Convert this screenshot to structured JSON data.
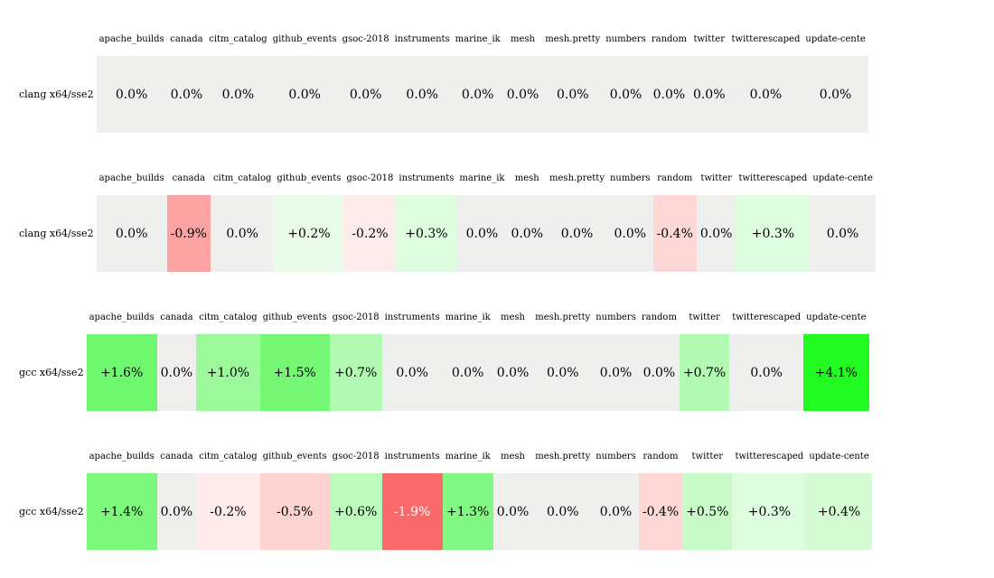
{
  "page": {
    "background": "#ffffff",
    "default_text_color": "#000000"
  },
  "chart_data": {
    "type": "heatmap",
    "unit": "%",
    "grid": false,
    "zero_color": "#efefee",
    "positive_color_family": "green",
    "negative_color_family": "red",
    "columns": [
      "apache_builds",
      "canada",
      "citm_catalog",
      "github_events",
      "gsoc-2018",
      "instruments",
      "marine_ik",
      "mesh",
      "mesh.pretty",
      "numbers",
      "random",
      "twitter",
      "twitterescaped",
      "update-cente"
    ],
    "blocks": [
      {
        "row_label": "clang x64/sse2",
        "values": [
          "0.0%",
          "0.0%",
          "0.0%",
          "0.0%",
          "0.0%",
          "0.0%",
          "0.0%",
          "0.0%",
          "0.0%",
          "0.0%",
          "0.0%",
          "0.0%",
          "0.0%",
          "0.0%"
        ],
        "numeric_values": [
          0.0,
          0.0,
          0.0,
          0.0,
          0.0,
          0.0,
          0.0,
          0.0,
          0.0,
          0.0,
          0.0,
          0.0,
          0.0,
          0.0
        ],
        "colors": [
          "#efefee",
          "#efefee",
          "#efefee",
          "#efefee",
          "#efefee",
          "#efefee",
          "#efefee",
          "#efefee",
          "#efefee",
          "#efefee",
          "#efefee",
          "#efefee",
          "#efefee",
          "#efefee"
        ],
        "text_colors": [
          "#000000",
          "#000000",
          "#000000",
          "#000000",
          "#000000",
          "#000000",
          "#000000",
          "#000000",
          "#000000",
          "#000000",
          "#000000",
          "#000000",
          "#000000",
          "#000000"
        ]
      },
      {
        "row_label": "clang x64/sse2",
        "values": [
          "0.0%",
          "-0.9%",
          "0.0%",
          "+0.2%",
          "-0.2%",
          "+0.3%",
          "0.0%",
          "0.0%",
          "0.0%",
          "0.0%",
          "-0.4%",
          "0.0%",
          "+0.3%",
          "0.0%"
        ],
        "numeric_values": [
          0.0,
          -0.9,
          0.0,
          0.2,
          -0.2,
          0.3,
          0.0,
          0.0,
          0.0,
          0.0,
          -0.4,
          0.0,
          0.3,
          0.0
        ],
        "colors": [
          "#efefee",
          "#fba3a2",
          "#efefee",
          "#e9fce9",
          "#fdeceb",
          "#defcde",
          "#efefee",
          "#efefee",
          "#efefee",
          "#efefee",
          "#fdd8d7",
          "#efefee",
          "#defcde",
          "#efefee"
        ],
        "text_colors": [
          "#000000",
          "#000000",
          "#000000",
          "#000000",
          "#000000",
          "#000000",
          "#000000",
          "#000000",
          "#000000",
          "#000000",
          "#000000",
          "#000000",
          "#000000",
          "#000000"
        ]
      },
      {
        "row_label": "gcc x64/sse2",
        "values": [
          "+1.6%",
          "0.0%",
          "+1.0%",
          "+1.5%",
          "+0.7%",
          "0.0%",
          "0.0%",
          "0.0%",
          "0.0%",
          "0.0%",
          "0.0%",
          "+0.7%",
          "0.0%",
          "+4.1%"
        ],
        "numeric_values": [
          1.6,
          0.0,
          1.0,
          1.5,
          0.7,
          0.0,
          0.0,
          0.0,
          0.0,
          0.0,
          0.0,
          0.7,
          0.0,
          4.1
        ],
        "colors": [
          "#70f770",
          "#efefee",
          "#9bf99b",
          "#76f876",
          "#b2fab2",
          "#efefee",
          "#efefee",
          "#efefee",
          "#efefee",
          "#efefee",
          "#efefee",
          "#b2fab2",
          "#efefee",
          "#21fb21"
        ],
        "text_colors": [
          "#000000",
          "#000000",
          "#000000",
          "#000000",
          "#000000",
          "#000000",
          "#000000",
          "#000000",
          "#000000",
          "#000000",
          "#000000",
          "#000000",
          "#000000",
          "#000000"
        ]
      },
      {
        "row_label": "gcc x64/sse2",
        "values": [
          "+1.4%",
          "0.0%",
          "-0.2%",
          "-0.5%",
          "+0.6%",
          "-1.9%",
          "+1.3%",
          "0.0%",
          "0.0%",
          "0.0%",
          "-0.4%",
          "+0.5%",
          "+0.3%",
          "+0.4%"
        ],
        "numeric_values": [
          1.4,
          0.0,
          -0.2,
          -0.5,
          0.6,
          -1.9,
          1.3,
          0.0,
          0.0,
          0.0,
          -0.4,
          0.5,
          0.3,
          0.4
        ],
        "colors": [
          "#7cf87c",
          "#efefee",
          "#fdeceb",
          "#fdd3d2",
          "#bdfbbd",
          "#f96b6b",
          "#84f884",
          "#efefee",
          "#efefee",
          "#efefee",
          "#fdd8d7",
          "#c8fbc8",
          "#defcde",
          "#d4fbd4"
        ],
        "text_colors": [
          "#000000",
          "#000000",
          "#000000",
          "#000000",
          "#000000",
          "#ffffff",
          "#000000",
          "#000000",
          "#000000",
          "#000000",
          "#000000",
          "#000000",
          "#000000",
          "#000000"
        ]
      }
    ]
  }
}
